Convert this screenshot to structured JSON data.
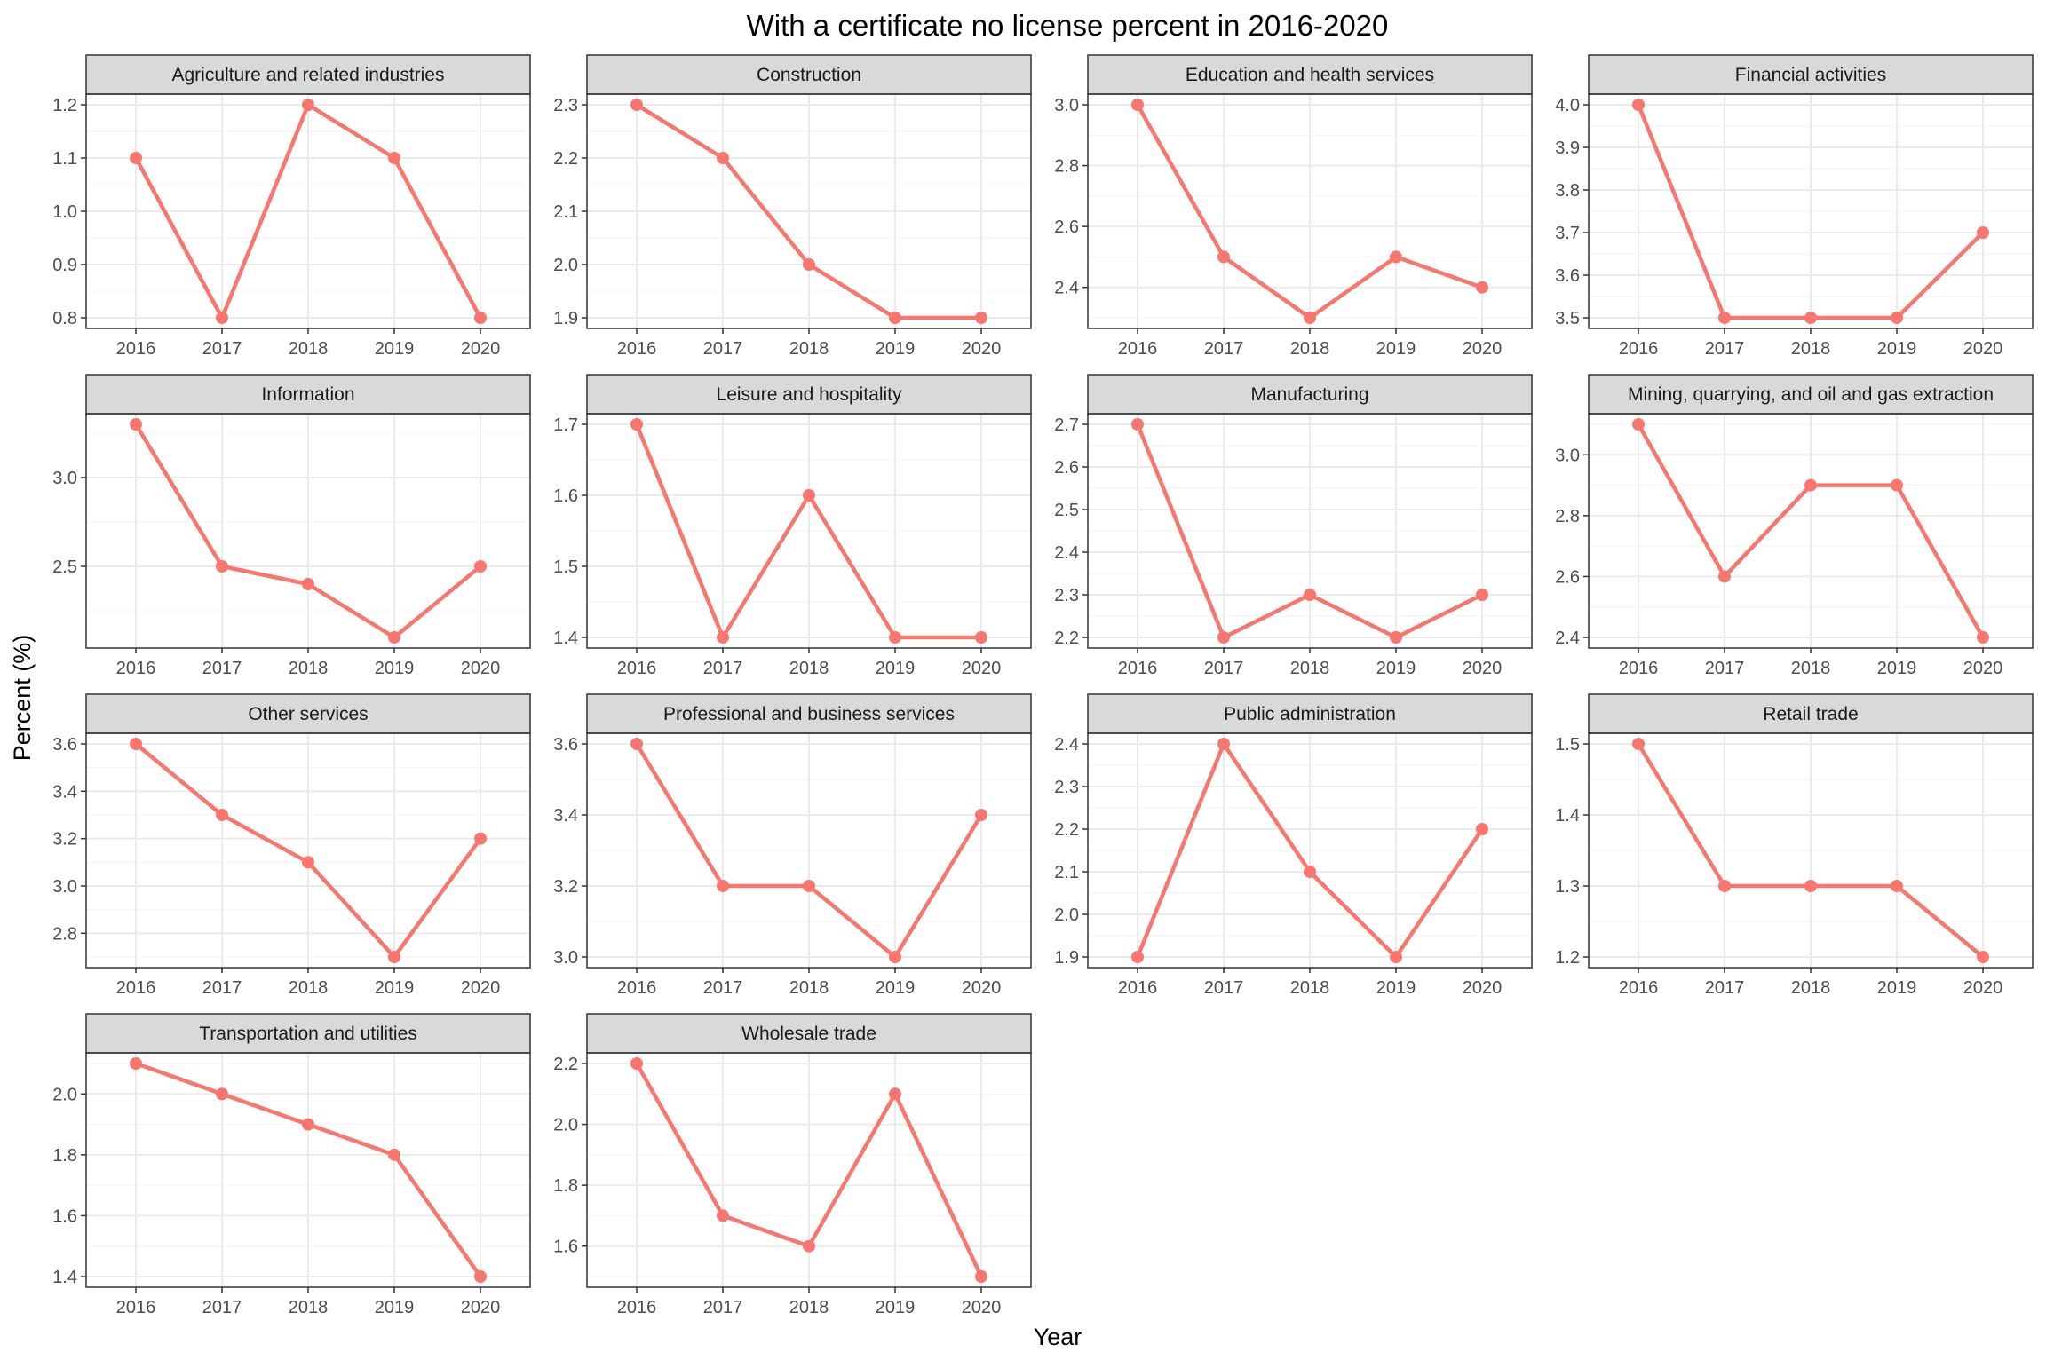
{
  "chart_data": {
    "type": "line",
    "title": "With a certificate no license percent in 2016-2020",
    "xlabel": "Year",
    "ylabel": "Percent (%)",
    "x": [
      "2016",
      "2017",
      "2018",
      "2019",
      "2020"
    ],
    "grid": true,
    "colors": {
      "series": "#F8766D",
      "strip": "#D9D9D9",
      "grid_major": "#EBEBEB",
      "grid_minor": "#F5F5F5",
      "panel_border": "#333333"
    },
    "facets": [
      {
        "title": "Agriculture and related industries",
        "values": [
          1.1,
          0.8,
          1.2,
          1.1,
          0.8
        ],
        "ylim": [
          0.78,
          1.22
        ],
        "yticks": [
          0.8,
          0.9,
          1.0,
          1.1,
          1.2
        ],
        "ytick_labels": [
          "0.8",
          "0.9",
          "1.0",
          "1.1",
          "1.2"
        ]
      },
      {
        "title": "Construction",
        "values": [
          2.3,
          2.2,
          2.0,
          1.9,
          1.9
        ],
        "ylim": [
          1.88,
          2.32
        ],
        "yticks": [
          1.9,
          2.0,
          2.1,
          2.2,
          2.3
        ],
        "ytick_labels": [
          "1.9",
          "2.0",
          "2.1",
          "2.2",
          "2.3"
        ]
      },
      {
        "title": "Education and health services",
        "values": [
          3.0,
          2.5,
          2.3,
          2.5,
          2.4
        ],
        "ylim": [
          2.265,
          3.035
        ],
        "yticks": [
          2.4,
          2.6,
          2.8,
          3.0
        ],
        "ytick_labels": [
          "2.4",
          "2.6",
          "2.8",
          "3.0"
        ]
      },
      {
        "title": "Financial activities",
        "values": [
          4.0,
          3.5,
          3.5,
          3.5,
          3.7
        ],
        "ylim": [
          3.475,
          4.025
        ],
        "yticks": [
          3.5,
          3.6,
          3.7,
          3.8,
          3.9,
          4.0
        ],
        "ytick_labels": [
          "3.5",
          "3.6",
          "3.7",
          "3.8",
          "3.9",
          "4.0"
        ]
      },
      {
        "title": "Information",
        "values": [
          3.3,
          2.5,
          2.4,
          2.1,
          2.5
        ],
        "ylim": [
          2.04,
          3.36
        ],
        "yticks": [
          2.5,
          3.0
        ],
        "ytick_labels": [
          "2.5",
          "3.0"
        ]
      },
      {
        "title": "Leisure and hospitality",
        "values": [
          1.7,
          1.4,
          1.6,
          1.4,
          1.4
        ],
        "ylim": [
          1.385,
          1.715
        ],
        "yticks": [
          1.4,
          1.5,
          1.6,
          1.7
        ],
        "ytick_labels": [
          "1.4",
          "1.5",
          "1.6",
          "1.7"
        ]
      },
      {
        "title": "Manufacturing",
        "values": [
          2.7,
          2.2,
          2.3,
          2.2,
          2.3
        ],
        "ylim": [
          2.175,
          2.725
        ],
        "yticks": [
          2.2,
          2.3,
          2.4,
          2.5,
          2.6,
          2.7
        ],
        "ytick_labels": [
          "2.2",
          "2.3",
          "2.4",
          "2.5",
          "2.6",
          "2.7"
        ]
      },
      {
        "title": "Mining, quarrying, and oil and gas extraction",
        "values": [
          3.1,
          2.6,
          2.9,
          2.9,
          2.4
        ],
        "ylim": [
          2.365,
          3.135
        ],
        "yticks": [
          2.4,
          2.6,
          2.8,
          3.0
        ],
        "ytick_labels": [
          "2.4",
          "2.6",
          "2.8",
          "3.0"
        ]
      },
      {
        "title": "Other services",
        "values": [
          3.6,
          3.3,
          3.1,
          2.7,
          3.2
        ],
        "ylim": [
          2.655,
          3.645
        ],
        "yticks": [
          2.8,
          3.0,
          3.2,
          3.4,
          3.6
        ],
        "ytick_labels": [
          "2.8",
          "3.0",
          "3.2",
          "3.4",
          "3.6"
        ]
      },
      {
        "title": "Professional and business services",
        "values": [
          3.6,
          3.2,
          3.2,
          3.0,
          3.4
        ],
        "ylim": [
          2.97,
          3.63
        ],
        "yticks": [
          3.0,
          3.2,
          3.4,
          3.6
        ],
        "ytick_labels": [
          "3.0",
          "3.2",
          "3.4",
          "3.6"
        ]
      },
      {
        "title": "Public administration",
        "values": [
          1.9,
          2.4,
          2.1,
          1.9,
          2.2
        ],
        "ylim": [
          1.875,
          2.425
        ],
        "yticks": [
          1.9,
          2.0,
          2.1,
          2.2,
          2.3,
          2.4
        ],
        "ytick_labels": [
          "1.9",
          "2.0",
          "2.1",
          "2.2",
          "2.3",
          "2.4"
        ]
      },
      {
        "title": "Retail trade",
        "values": [
          1.5,
          1.3,
          1.3,
          1.3,
          1.2
        ],
        "ylim": [
          1.185,
          1.515
        ],
        "yticks": [
          1.2,
          1.3,
          1.4,
          1.5
        ],
        "ytick_labels": [
          "1.2",
          "1.3",
          "1.4",
          "1.5"
        ]
      },
      {
        "title": "Transportation and utilities",
        "values": [
          2.1,
          2.0,
          1.9,
          1.8,
          1.4
        ],
        "ylim": [
          1.365,
          2.135
        ],
        "yticks": [
          1.4,
          1.6,
          1.8,
          2.0
        ],
        "ytick_labels": [
          "1.4",
          "1.6",
          "1.8",
          "2.0"
        ]
      },
      {
        "title": "Wholesale trade",
        "values": [
          2.2,
          1.7,
          1.6,
          2.1,
          1.5
        ],
        "ylim": [
          1.465,
          2.235
        ],
        "yticks": [
          1.6,
          1.8,
          2.0,
          2.2
        ],
        "ytick_labels": [
          "1.6",
          "1.8",
          "2.0",
          "2.2"
        ]
      }
    ]
  }
}
